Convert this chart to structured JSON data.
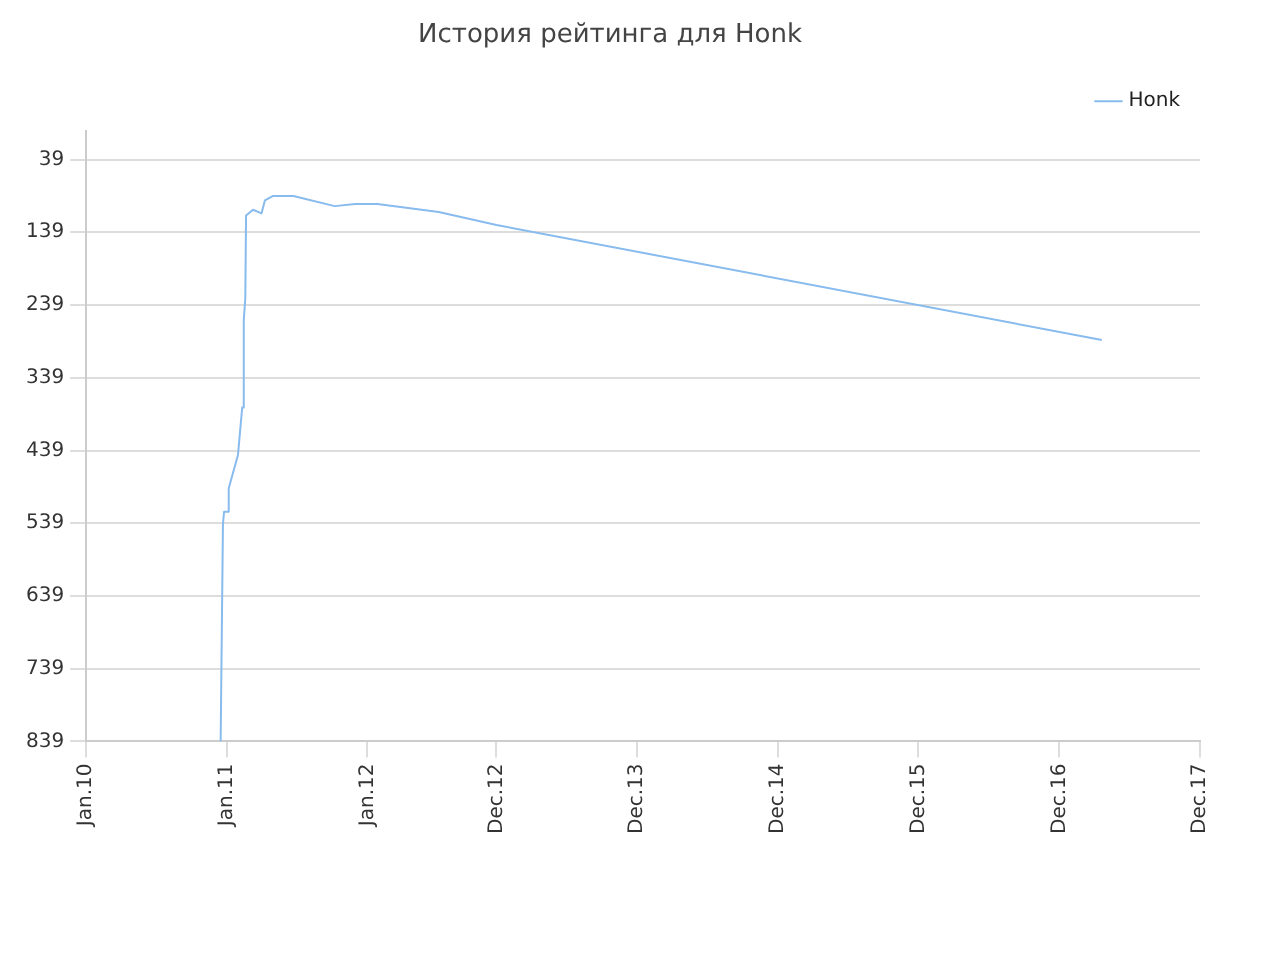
{
  "chart_data": {
    "type": "line",
    "title": "История рейтинга для Honk",
    "x": [
      "2010-12-16",
      "2010-12-22",
      "2010-12-25",
      "2011-01-05",
      "2011-01-06",
      "2011-01-30",
      "2011-02-10",
      "2011-02-14",
      "2011-02-18",
      "2011-02-20",
      "2011-03-10",
      "2011-04-01",
      "2011-04-10",
      "2011-05-01",
      "2011-06-23",
      "2011-10-08",
      "2011-11-30",
      "2012-01-27",
      "2012-07-04",
      "2012-12-01",
      "2017-03-21"
    ],
    "series": [
      {
        "name": "Honk",
        "color": "#88bbee",
        "values": [
          839,
          540,
          523,
          523,
          491,
          445,
          380,
          260,
          230,
          116,
          108,
          113,
          95,
          89,
          89,
          103,
          100,
          100,
          111,
          129,
          287
        ]
      }
    ],
    "xlim": [
      "2010-01-01",
      "2017-12-01"
    ],
    "xticks": [
      {
        "value": "2010-01-01",
        "label": "Jan.10"
      },
      {
        "value": "2011-01-01",
        "label": "Jan.11"
      },
      {
        "value": "2012-01-01",
        "label": "Jan.12"
      },
      {
        "value": "2012-12-01",
        "label": "Dec.12"
      },
      {
        "value": "2013-12-01",
        "label": "Dec.13"
      },
      {
        "value": "2014-12-01",
        "label": "Dec.14"
      },
      {
        "value": "2015-12-01",
        "label": "Dec.15"
      },
      {
        "value": "2016-12-01",
        "label": "Dec.16"
      },
      {
        "value": "2017-12-01",
        "label": "Dec.17"
      }
    ],
    "ylim": [
      839,
      0
    ],
    "yticks": [
      39,
      139,
      239,
      339,
      439,
      539,
      639,
      739,
      839
    ],
    "grid": "y",
    "legend": "top right",
    "marker": "none",
    "line_style": "solid"
  }
}
